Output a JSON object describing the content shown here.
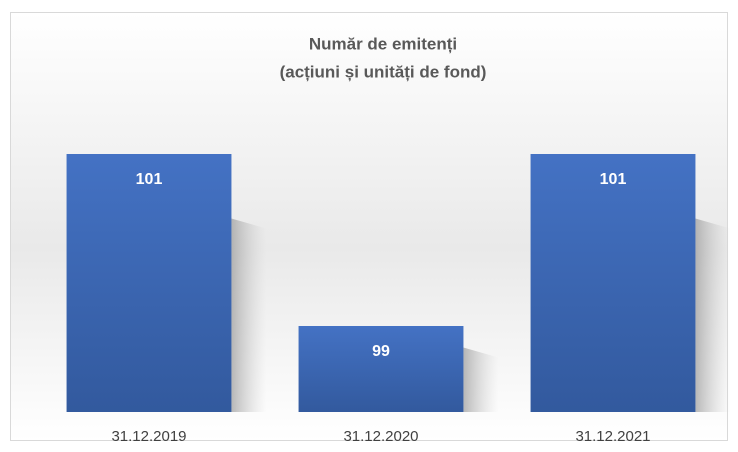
{
  "chart_data": {
    "type": "bar",
    "title": [
      "Număr de emitenți",
      "(acțiuni și unități de fond)"
    ],
    "categories": [
      "31.12.2019",
      "31.12.2020",
      "31.12.2021"
    ],
    "values": [
      101,
      99,
      101
    ],
    "color": "#4472c4",
    "ylim": [
      98,
      101
    ],
    "grid": false
  }
}
